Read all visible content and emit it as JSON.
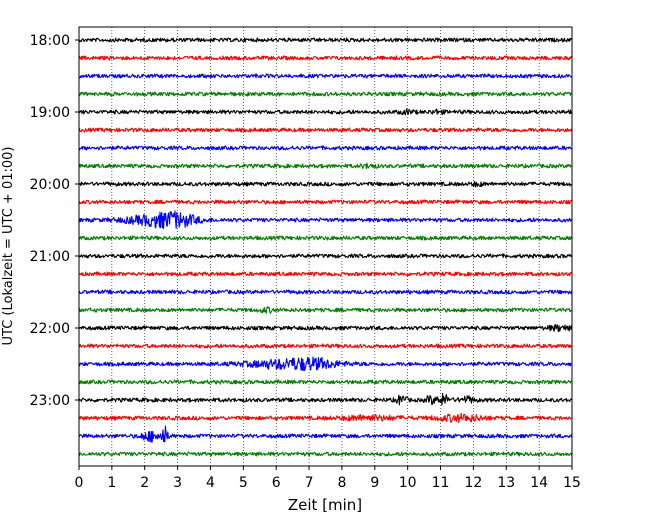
{
  "chart_data": {
    "type": "line",
    "title": "",
    "xlabel": "Zeit  [min]",
    "ylabel": "UTC (Lokalzeit = UTC + 01:00)",
    "xlim": [
      0,
      15
    ],
    "x_ticks": [
      "0",
      "1",
      "2",
      "3",
      "4",
      "5",
      "6",
      "7",
      "8",
      "9",
      "10",
      "11",
      "12",
      "13",
      "14",
      "15"
    ],
    "y_ticks": [
      "18:00",
      "19:00",
      "20:00",
      "21:00",
      "22:00",
      "23:00"
    ],
    "grid": "vertical dotted at each minute",
    "trace_interval_min": 15,
    "first_trace_utc": "18:00",
    "trace_count": 24,
    "colors": [
      "#000000",
      "#ff0000",
      "#0000ff",
      "#008000"
    ],
    "traces": [
      {
        "utc": "18:00",
        "color": "#000000",
        "events": []
      },
      {
        "utc": "18:15",
        "color": "#ff0000",
        "events": []
      },
      {
        "utc": "18:30",
        "color": "#0000ff",
        "events": []
      },
      {
        "utc": "18:45",
        "color": "#008000",
        "events": []
      },
      {
        "utc": "19:00",
        "color": "#000000",
        "events": [
          {
            "t": 10.0,
            "amp": 1.6
          },
          {
            "t": 10.9,
            "amp": 1.4
          }
        ]
      },
      {
        "utc": "19:15",
        "color": "#ff0000",
        "events": []
      },
      {
        "utc": "19:30",
        "color": "#0000ff",
        "events": []
      },
      {
        "utc": "19:45",
        "color": "#008000",
        "events": [
          {
            "t": 8.8,
            "amp": 1.5
          }
        ]
      },
      {
        "utc": "20:00",
        "color": "#000000",
        "events": [
          {
            "t": 12.1,
            "amp": 1.4
          }
        ]
      },
      {
        "utc": "20:15",
        "color": "#ff0000",
        "events": []
      },
      {
        "utc": "20:30",
        "color": "#0000ff",
        "events": [
          {
            "t": 2.4,
            "amp": 5.0,
            "width": 1.6
          },
          {
            "t": 3.0,
            "amp": 4.0,
            "width": 1.0
          }
        ]
      },
      {
        "utc": "20:45",
        "color": "#008000",
        "events": []
      },
      {
        "utc": "21:00",
        "color": "#000000",
        "events": []
      },
      {
        "utc": "21:15",
        "color": "#ff0000",
        "events": []
      },
      {
        "utc": "21:30",
        "color": "#0000ff",
        "events": []
      },
      {
        "utc": "21:45",
        "color": "#008000",
        "events": [
          {
            "t": 5.7,
            "amp": 1.8
          }
        ]
      },
      {
        "utc": "22:00",
        "color": "#000000",
        "events": [
          {
            "t": 14.6,
            "amp": 2.2,
            "width": 0.6
          }
        ]
      },
      {
        "utc": "22:15",
        "color": "#ff0000",
        "events": []
      },
      {
        "utc": "22:30",
        "color": "#0000ff",
        "events": [
          {
            "t": 6.3,
            "amp": 4.0,
            "width": 2.0
          },
          {
            "t": 7.2,
            "amp": 3.0,
            "width": 1.2
          }
        ]
      },
      {
        "utc": "22:45",
        "color": "#008000",
        "events": []
      },
      {
        "utc": "23:00",
        "color": "#000000",
        "events": [
          {
            "t": 9.8,
            "amp": 4.5,
            "width": 0.25
          },
          {
            "t": 10.7,
            "amp": 3.5,
            "width": 0.25
          },
          {
            "t": 11.1,
            "amp": 5.0,
            "width": 0.3
          },
          {
            "t": 11.8,
            "amp": 2.5,
            "width": 0.4
          }
        ]
      },
      {
        "utc": "23:15",
        "color": "#ff0000",
        "events": [
          {
            "t": 8.8,
            "amp": 2.0,
            "width": 1.5
          },
          {
            "t": 11.6,
            "amp": 3.0,
            "width": 1.2
          }
        ]
      },
      {
        "utc": "23:30",
        "color": "#0000ff",
        "events": [
          {
            "t": 2.2,
            "amp": 4.5,
            "width": 0.5
          },
          {
            "t": 2.6,
            "amp": 9.0,
            "width": 0.15
          }
        ]
      },
      {
        "utc": "23:45",
        "color": "#008000",
        "events": []
      }
    ]
  }
}
